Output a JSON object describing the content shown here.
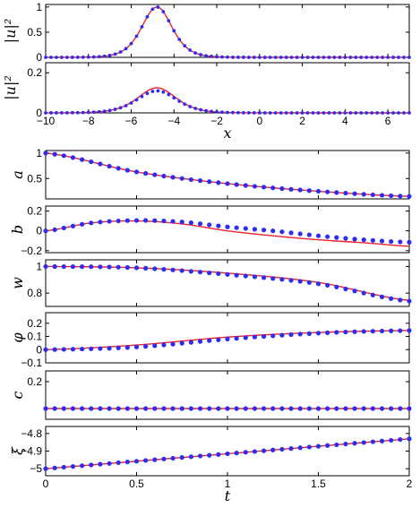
{
  "colors": {
    "line": "#e8242e",
    "dots": "#2d2df0",
    "axes": "#000000",
    "background": "#ffffff"
  },
  "chart_data": [
    {
      "type": "line",
      "ylabel": "|u|²",
      "xlim": [
        -10,
        7
      ],
      "ylim": [
        0,
        1.05
      ],
      "xticks": [
        -10,
        -8,
        -6,
        -4,
        -2,
        0,
        2,
        4,
        6
      ],
      "yticks": [
        0,
        0.5,
        1
      ],
      "yticklabels": [
        "0",
        "0.5",
        "1"
      ],
      "show_xticklabels": false,
      "peak": {
        "center": -4.8,
        "height": 1.0,
        "width": 0.95
      },
      "series": [
        {
          "role": "line",
          "center": -4.8,
          "amplitude": 1.0,
          "width": 0.95
        },
        {
          "role": "dots",
          "center": -4.8,
          "amplitude": 1.0,
          "width": 0.95
        }
      ]
    },
    {
      "type": "line",
      "ylabel": "|u|²",
      "xlabel": "x",
      "xlim": [
        -10,
        7
      ],
      "ylim": [
        0,
        0.25
      ],
      "xticks": [
        -10,
        -8,
        -6,
        -4,
        -2,
        0,
        2,
        4,
        6
      ],
      "xticklabels": [
        "−10",
        "−8",
        "−6",
        "−4",
        "−2",
        "0",
        "2",
        "4",
        "6"
      ],
      "yticks": [
        0,
        0.2
      ],
      "yticklabels": [
        "0",
        "0.2"
      ],
      "show_xticklabels": true,
      "series": [
        {
          "role": "line",
          "center": -4.8,
          "amplitude": 0.125,
          "width": 1.2
        },
        {
          "role": "dots",
          "center": -4.8,
          "amplitude": 0.11,
          "width": 1.25
        }
      ]
    },
    {
      "type": "line",
      "ylabel": "a",
      "xlim": [
        0,
        2
      ],
      "ylim": [
        0.1,
        1.05
      ],
      "xticks": [
        0,
        0.5,
        1,
        1.5,
        2
      ],
      "yticks": [
        0.5,
        1
      ],
      "yticklabels": [
        "0.5",
        "1"
      ],
      "show_xticklabels": false,
      "x": [
        0,
        0.5,
        1,
        1.5,
        2
      ],
      "series": [
        {
          "role": "line",
          "values": [
            1.0,
            0.63,
            0.4,
            0.25,
            0.15
          ]
        },
        {
          "role": "dots",
          "values": [
            1.0,
            0.63,
            0.4,
            0.25,
            0.15
          ]
        }
      ]
    },
    {
      "type": "line",
      "ylabel": "b",
      "xlim": [
        0,
        2
      ],
      "ylim": [
        -0.22,
        0.25
      ],
      "xticks": [
        0,
        0.5,
        1,
        1.5,
        2
      ],
      "yticks": [
        -0.2,
        0,
        0.2
      ],
      "yticklabels": [
        "−0.2",
        "0",
        "0.2"
      ],
      "show_xticklabels": false,
      "x": [
        0,
        0.25,
        0.5,
        0.75,
        1,
        1.25,
        1.5,
        1.75,
        2
      ],
      "series": [
        {
          "role": "line",
          "values": [
            0,
            0.08,
            0.1,
            0.07,
            0.0,
            -0.05,
            -0.09,
            -0.12,
            -0.155
          ]
        },
        {
          "role": "dots",
          "values": [
            0,
            0.08,
            0.105,
            0.09,
            0.04,
            0.0,
            -0.05,
            -0.09,
            -0.115
          ]
        }
      ]
    },
    {
      "type": "line",
      "ylabel": "w",
      "xlim": [
        0,
        2
      ],
      "ylim": [
        0.7,
        1.05
      ],
      "xticks": [
        0,
        0.5,
        1,
        1.5,
        2
      ],
      "yticks": [
        0.8,
        1
      ],
      "yticklabels": [
        "0.8",
        "1"
      ],
      "show_xticklabels": false,
      "x": [
        0,
        0.5,
        1,
        1.5,
        2
      ],
      "series": [
        {
          "role": "line",
          "values": [
            1.0,
            0.99,
            0.95,
            0.88,
            0.745
          ]
        },
        {
          "role": "dots",
          "values": [
            1.0,
            0.99,
            0.94,
            0.87,
            0.74
          ]
        }
      ]
    },
    {
      "type": "line",
      "ylabel": "φ",
      "xlim": [
        0,
        2
      ],
      "ylim": [
        -0.1,
        0.28
      ],
      "xticks": [
        0,
        0.5,
        1,
        1.5,
        2
      ],
      "yticks": [
        -0.1,
        0,
        0.1,
        0.2
      ],
      "yticklabels": [
        "−0.1",
        "0",
        "0.1",
        "0.2"
      ],
      "show_xticklabels": false,
      "x": [
        0,
        0.5,
        1,
        1.5,
        2
      ],
      "series": [
        {
          "role": "line",
          "values": [
            0,
            0.035,
            0.095,
            0.13,
            0.145
          ]
        },
        {
          "role": "dots",
          "values": [
            0,
            0.02,
            0.08,
            0.125,
            0.145
          ]
        }
      ]
    },
    {
      "type": "line",
      "ylabel": "c",
      "xlim": [
        0,
        2
      ],
      "ylim": [
        -0.08,
        0.28
      ],
      "xticks": [
        0,
        0.5,
        1,
        1.5,
        2
      ],
      "yticks": [
        0.2
      ],
      "yticklabels": [
        "0.2"
      ],
      "show_xticklabels": false,
      "x": [
        0,
        2
      ],
      "series": [
        {
          "role": "line",
          "values": [
            0,
            0
          ]
        },
        {
          "role": "dots",
          "values": [
            0,
            0
          ]
        }
      ]
    },
    {
      "type": "line",
      "ylabel": "ξ",
      "xlabel": "t",
      "xlim": [
        0,
        2
      ],
      "ylim": [
        -5.04,
        -4.76
      ],
      "xticks": [
        0,
        0.5,
        1,
        1.5,
        2
      ],
      "xticklabels": [
        "0",
        "0.5",
        "1",
        "1.5",
        "2"
      ],
      "yticks": [
        -5,
        -4.9,
        -4.8
      ],
      "yticklabels": [
        "−5",
        "−4.9",
        "−4.8"
      ],
      "show_xticklabels": true,
      "x": [
        0,
        2
      ],
      "series": [
        {
          "role": "line",
          "values": [
            -5.0,
            -4.83
          ]
        },
        {
          "role": "dots",
          "values": [
            -5.0,
            -4.83
          ]
        }
      ]
    }
  ]
}
